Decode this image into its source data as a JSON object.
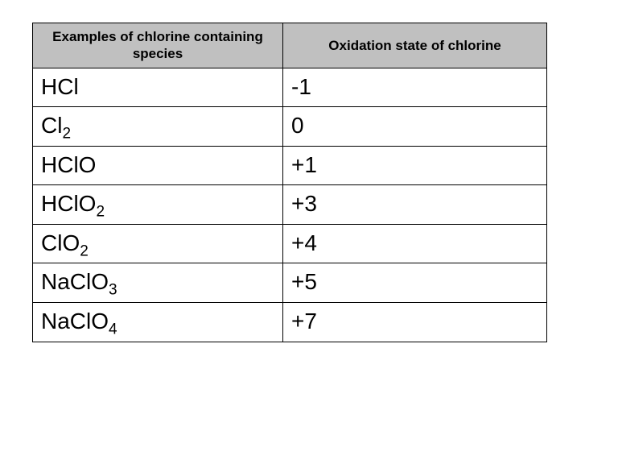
{
  "table": {
    "header_bg": "#c0c0c0",
    "border_color": "#000000",
    "columns": [
      {
        "label": "Examples of chlorine containing species"
      },
      {
        "label": "Oxidation state of chlorine"
      }
    ],
    "rows": [
      {
        "species_html": "HCl",
        "ox": "-1"
      },
      {
        "species_html": "Cl<sub>2</sub>",
        "ox": "0"
      },
      {
        "species_html": "HClO",
        "ox": "+1"
      },
      {
        "species_html": "HClO<sub>2</sub>",
        "ox": "+3"
      },
      {
        "species_html": "ClO<sub>2</sub>",
        "ox": "+4"
      },
      {
        "species_html": "NaClO<sub>3</sub>",
        "ox": "+5"
      },
      {
        "species_html": "NaClO<sub>4</sub>",
        "ox": "+7"
      }
    ]
  }
}
